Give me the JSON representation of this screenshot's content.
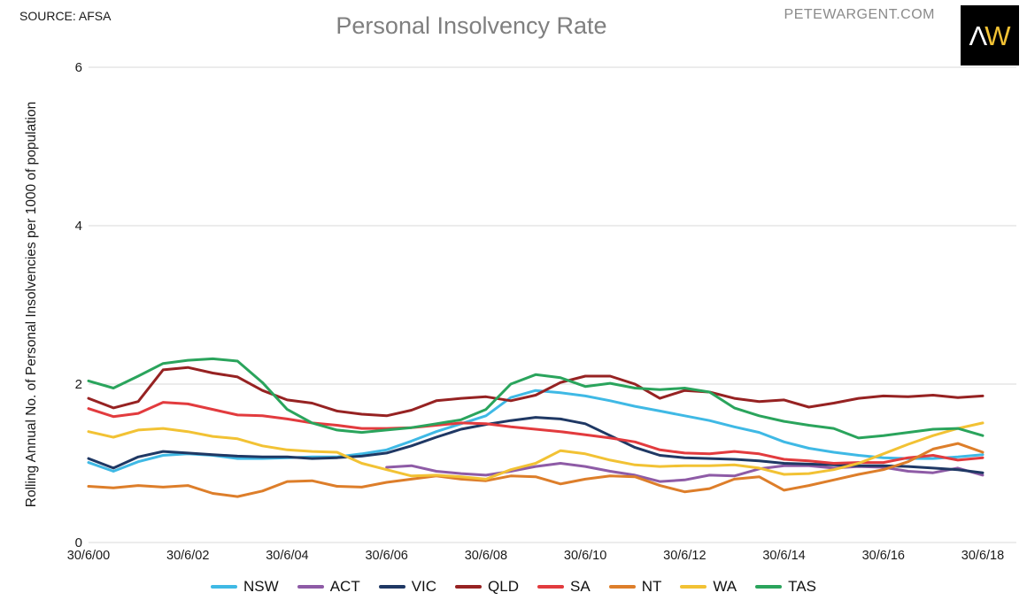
{
  "header": {
    "source": "SOURCE: AFSA",
    "title": "Personal Insolvency Rate",
    "website": "PETEWARGENT.COM",
    "logo": {
      "left": "Λ",
      "right": "W",
      "left_color": "#ffffff",
      "right_color": "#f2c234",
      "bg": "#000000"
    }
  },
  "chart_data": {
    "type": "line",
    "title": "Personal Insolvency Rate",
    "xlabel": "",
    "ylabel": "Rolling Annual No. of Personal Insolvencies per 1000 of population",
    "ylim": [
      0,
      6
    ],
    "y_ticks": [
      0,
      2,
      4,
      6
    ],
    "grid": "horizontal",
    "legend_position": "bottom",
    "x_count": 37,
    "x_ticks_every": 4,
    "x_tick_labels": [
      "30/6/00",
      "30/6/02",
      "30/6/04",
      "30/6/06",
      "30/6/08",
      "30/6/10",
      "30/6/12",
      "30/6/14",
      "30/6/16",
      "30/6/18"
    ],
    "x_note": "half-yearly points from 30/6/00 to 30/6/18",
    "series": [
      {
        "name": "NSW",
        "color": "#3fb9e5",
        "values": [
          1.01,
          0.9,
          1.02,
          1.1,
          1.12,
          1.1,
          1.06,
          1.06,
          1.07,
          1.08,
          1.08,
          1.12,
          1.17,
          1.28,
          1.4,
          1.5,
          1.6,
          1.83,
          1.92,
          1.89,
          1.85,
          1.79,
          1.72,
          1.66,
          1.6,
          1.54,
          1.46,
          1.39,
          1.27,
          1.19,
          1.14,
          1.1,
          1.07,
          1.06,
          1.06,
          1.08,
          1.11
        ]
      },
      {
        "name": "ACT",
        "color": "#8e5ba6",
        "values": [
          null,
          null,
          null,
          null,
          null,
          null,
          null,
          null,
          null,
          null,
          null,
          null,
          0.95,
          0.97,
          0.9,
          0.87,
          0.85,
          0.9,
          0.96,
          1.0,
          0.96,
          0.9,
          0.85,
          0.77,
          0.79,
          0.85,
          0.84,
          0.93,
          0.97,
          0.97,
          0.94,
          0.96,
          0.95,
          0.9,
          0.88,
          0.94,
          0.85
        ]
      },
      {
        "name": "VIC",
        "color": "#1f3864",
        "values": [
          1.06,
          0.94,
          1.08,
          1.15,
          1.13,
          1.11,
          1.09,
          1.08,
          1.08,
          1.06,
          1.07,
          1.09,
          1.13,
          1.22,
          1.33,
          1.43,
          1.49,
          1.54,
          1.58,
          1.56,
          1.5,
          1.35,
          1.2,
          1.1,
          1.07,
          1.06,
          1.05,
          1.03,
          1.0,
          0.99,
          0.98,
          0.97,
          0.97,
          0.96,
          0.94,
          0.92,
          0.88
        ]
      },
      {
        "name": "QLD",
        "color": "#962222",
        "values": [
          1.82,
          1.7,
          1.78,
          2.18,
          2.21,
          2.14,
          2.09,
          1.92,
          1.8,
          1.76,
          1.66,
          1.62,
          1.6,
          1.67,
          1.79,
          1.82,
          1.84,
          1.79,
          1.86,
          2.02,
          2.1,
          2.1,
          2.0,
          1.82,
          1.92,
          1.9,
          1.82,
          1.78,
          1.8,
          1.71,
          1.76,
          1.82,
          1.85,
          1.84,
          1.86,
          1.83,
          1.85
        ]
      },
      {
        "name": "SA",
        "color": "#e23b3e",
        "values": [
          1.69,
          1.59,
          1.63,
          1.77,
          1.75,
          1.68,
          1.61,
          1.6,
          1.56,
          1.51,
          1.48,
          1.44,
          1.44,
          1.45,
          1.48,
          1.51,
          1.5,
          1.46,
          1.43,
          1.4,
          1.36,
          1.32,
          1.27,
          1.17,
          1.13,
          1.12,
          1.15,
          1.12,
          1.05,
          1.03,
          1.0,
          1.01,
          1.01,
          1.07,
          1.1,
          1.04,
          1.07
        ]
      },
      {
        "name": "NT",
        "color": "#dd7e2a",
        "values": [
          0.71,
          0.69,
          0.72,
          0.7,
          0.72,
          0.62,
          0.58,
          0.65,
          0.77,
          0.78,
          0.71,
          0.7,
          0.76,
          0.8,
          0.84,
          0.8,
          0.78,
          0.84,
          0.83,
          0.74,
          0.8,
          0.84,
          0.83,
          0.72,
          0.64,
          0.68,
          0.8,
          0.83,
          0.66,
          0.72,
          0.79,
          0.86,
          0.92,
          1.02,
          1.18,
          1.25,
          1.14
        ]
      },
      {
        "name": "WA",
        "color": "#f2c234",
        "values": [
          1.4,
          1.33,
          1.42,
          1.44,
          1.4,
          1.34,
          1.31,
          1.22,
          1.17,
          1.15,
          1.14,
          1.0,
          0.92,
          0.84,
          0.85,
          0.83,
          0.8,
          0.92,
          1.0,
          1.16,
          1.12,
          1.04,
          0.98,
          0.96,
          0.97,
          0.97,
          0.98,
          0.94,
          0.86,
          0.87,
          0.92,
          1.0,
          1.12,
          1.24,
          1.35,
          1.44,
          1.51
        ]
      },
      {
        "name": "TAS",
        "color": "#2aa45c",
        "values": [
          2.04,
          1.95,
          2.1,
          2.26,
          2.3,
          2.32,
          2.29,
          2.02,
          1.68,
          1.51,
          1.42,
          1.39,
          1.42,
          1.45,
          1.5,
          1.55,
          1.68,
          2.0,
          2.12,
          2.08,
          1.97,
          2.01,
          1.95,
          1.93,
          1.95,
          1.9,
          1.7,
          1.6,
          1.53,
          1.48,
          1.44,
          1.32,
          1.35,
          1.39,
          1.43,
          1.44,
          1.35
        ]
      }
    ]
  }
}
